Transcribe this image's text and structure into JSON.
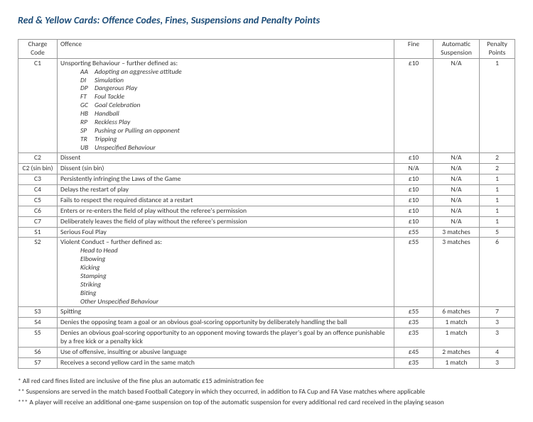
{
  "title": "Red & Yellow Cards: Offence Codes, Fines, Suspensions and Penalty Points",
  "headers": {
    "code": "Charge Code",
    "offence": "Offence",
    "fine": "Fine",
    "suspension": "Automatic Suspension",
    "points": "Penalty Points"
  },
  "rows": [
    {
      "code": "C1",
      "offence": "Unsporting Behaviour – further defined as:",
      "sub": [
        {
          "c": "AA",
          "t": "Adopting an aggressive attitude"
        },
        {
          "c": "DI",
          "t": "Simulation"
        },
        {
          "c": "DP",
          "t": "Dangerous Play"
        },
        {
          "c": "FT",
          "t": "Foul Tackle"
        },
        {
          "c": "GC",
          "t": "Goal Celebration"
        },
        {
          "c": "HB",
          "t": "Handball"
        },
        {
          "c": "RP",
          "t": "Reckless Play"
        },
        {
          "c": "SP",
          "t": "Pushing or Pulling an opponent"
        },
        {
          "c": "TR",
          "t": "Tripping"
        },
        {
          "c": "UB",
          "t": "Unspecified Behaviour"
        }
      ],
      "fine": "£10",
      "suspension": "N/A",
      "points": "1"
    },
    {
      "code": "C2",
      "offence": "Dissent",
      "fine": "£10",
      "suspension": "N/A",
      "points": "2"
    },
    {
      "code": "C2 (sin bin)",
      "offence": "Dissent (sin bin)",
      "fine": "N/A",
      "suspension": "N/A",
      "points": "2"
    },
    {
      "code": "C3",
      "offence": "Persistently infringing the Laws of the Game",
      "fine": "£10",
      "suspension": "N/A",
      "points": "1"
    },
    {
      "code": "C4",
      "offence": "Delays the restart of play",
      "fine": "£10",
      "suspension": "N/A",
      "points": "1"
    },
    {
      "code": "C5",
      "offence": "Fails to respect the required distance at a restart",
      "fine": "£10",
      "suspension": "N/A",
      "points": "1"
    },
    {
      "code": "C6",
      "offence": "Enters or re-enters the field of play without the referee's permission",
      "fine": "£10",
      "suspension": "N/A",
      "points": "1"
    },
    {
      "code": "C7",
      "offence": "Deliberately leaves the field of play without the referee's permission",
      "fine": "£10",
      "suspension": "N/A",
      "points": "1"
    },
    {
      "code": "S1",
      "offence": "Serious Foul Play",
      "fine": "£55",
      "suspension": "3 matches",
      "points": "5"
    },
    {
      "code": "S2",
      "offence": "Violent Conduct – further defined as:",
      "sub": [
        {
          "c": "",
          "t": "Head to Head"
        },
        {
          "c": "",
          "t": "Elbowing"
        },
        {
          "c": "",
          "t": "Kicking"
        },
        {
          "c": "",
          "t": "Stamping"
        },
        {
          "c": "",
          "t": "Striking"
        },
        {
          "c": "",
          "t": "Biting"
        },
        {
          "c": "",
          "t": "Other Unspecified Behaviour"
        }
      ],
      "fine": "£55",
      "suspension": "3 matches",
      "points": "6"
    },
    {
      "code": "S3",
      "offence": "Spitting",
      "fine": "£55",
      "suspension": "6 matches",
      "points": "7"
    },
    {
      "code": "S4",
      "offence": "Denies the opposing team a goal or an obvious goal-scoring opportunity by deliberately handling the ball",
      "fine": "£35",
      "suspension": "1 match",
      "points": "3"
    },
    {
      "code": "S5",
      "offence": "Denies an obvious goal-scoring opportunity to an opponent moving towards the player's goal by an offence punishable by a free kick or a penalty kick",
      "fine": "£35",
      "suspension": "1 match",
      "points": "3"
    },
    {
      "code": "S6",
      "offence": "Use of offensive, insulting or abusive language",
      "fine": "£45",
      "suspension": "2 matches",
      "points": "4"
    },
    {
      "code": "S7",
      "offence": "Receives a second yellow card in the same match",
      "fine": "£35",
      "suspension": "1 match",
      "points": "3"
    }
  ],
  "footnotes": [
    "* All red card fines listed are inclusive of the fine plus an automatic £15 administration fee",
    "** Suspensions are served in the match based Football Category in which they occurred, in addition to FA Cup and FA Vase matches where applicable",
    "*** A player will receive an additional one-game suspension on top of the automatic suspension for every additional red card received in the playing season"
  ]
}
